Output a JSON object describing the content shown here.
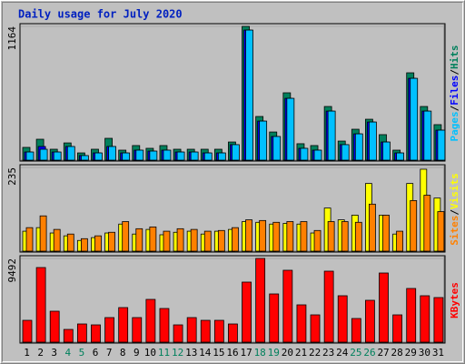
{
  "legend_separator": "/",
  "chart_data": [
    {
      "type": "bar",
      "title": "Daily usage for July 2020",
      "ylim": [
        0,
        1164
      ],
      "yticks": [
        1164
      ],
      "series": [
        {
          "name": "Hits",
          "color": "#00805c",
          "values": [
            111,
            182,
            95,
            150,
            63,
            95,
            190,
            87,
            127,
            103,
            127,
            95,
            95,
            95,
            95,
            158,
            1164,
            380,
            245,
            586,
            143,
            127,
            467,
            166,
            269,
            356,
            222,
            87,
            760,
            467,
            309
          ]
        },
        {
          "name": "Files",
          "color": "#0000ff",
          "values": [
            71,
            119,
            71,
            119,
            40,
            63,
            119,
            63,
            87,
            79,
            87,
            71,
            71,
            63,
            63,
            135,
            1132,
            340,
            206,
            538,
            103,
            87,
            427,
            135,
            229,
            332,
            158,
            63,
            712,
            427,
            261
          ]
        },
        {
          "name": "Pages",
          "color": "#00c0ff",
          "values": [
            71,
            95,
            71,
            119,
            40,
            63,
            119,
            63,
            87,
            79,
            87,
            71,
            71,
            63,
            63,
            135,
            1132,
            340,
            206,
            538,
            103,
            87,
            427,
            135,
            229,
            332,
            158,
            63,
            712,
            427,
            261
          ]
        }
      ]
    },
    {
      "type": "bar",
      "ylim": [
        0,
        235
      ],
      "yticks": [
        235
      ],
      "series": [
        {
          "name": "Visits",
          "color": "#ffff00",
          "values": [
            56,
            66,
            51,
            43,
            30,
            38,
            51,
            76,
            48,
            61,
            46,
            53,
            56,
            48,
            56,
            61,
            83,
            81,
            76,
            78,
            76,
            51,
            121,
            88,
            101,
            190,
            101,
            48,
            190,
            230,
            149
          ]
        },
        {
          "name": "Sites",
          "color": "#ff8000",
          "values": [
            66,
            99,
            61,
            48,
            35,
            43,
            53,
            83,
            63,
            68,
            56,
            63,
            61,
            56,
            58,
            66,
            88,
            86,
            81,
            83,
            83,
            58,
            83,
            83,
            81,
            132,
            101,
            56,
            142,
            157,
            111
          ]
        }
      ]
    },
    {
      "type": "bar",
      "ylim": [
        0,
        9492
      ],
      "yticks": [
        9492
      ],
      "categories": [
        "1",
        "2",
        "3",
        "4",
        "5",
        "6",
        "7",
        "8",
        "9",
        "10",
        "11",
        "12",
        "13",
        "14",
        "15",
        "16",
        "17",
        "18",
        "19",
        "20",
        "21",
        "22",
        "23",
        "24",
        "25",
        "26",
        "27",
        "28",
        "29",
        "30",
        "31"
      ],
      "category_colors": [
        "#000000",
        "#000000",
        "#000000",
        "#00805c",
        "#00805c",
        "#000000",
        "#000000",
        "#000000",
        "#000000",
        "#000000",
        "#00805c",
        "#00805c",
        "#000000",
        "#000000",
        "#000000",
        "#000000",
        "#000000",
        "#00805c",
        "#00805c",
        "#000000",
        "#000000",
        "#000000",
        "#000000",
        "#000000",
        "#00805c",
        "#00805c",
        "#000000",
        "#000000",
        "#000000",
        "#000000",
        "#000000"
      ],
      "series": [
        {
          "name": "KBytes",
          "color": "#ff0000",
          "values": [
            2476,
            8460,
            3508,
            1444,
            2063,
            1960,
            2786,
            3920,
            2786,
            4849,
            3817,
            1960,
            2786,
            2476,
            2476,
            2063,
            6810,
            9492,
            5468,
            8151,
            4230,
            3095,
            8048,
            5262,
            2682,
            4746,
            7841,
            3095,
            6087,
            5262,
            5056
          ]
        }
      ]
    }
  ]
}
